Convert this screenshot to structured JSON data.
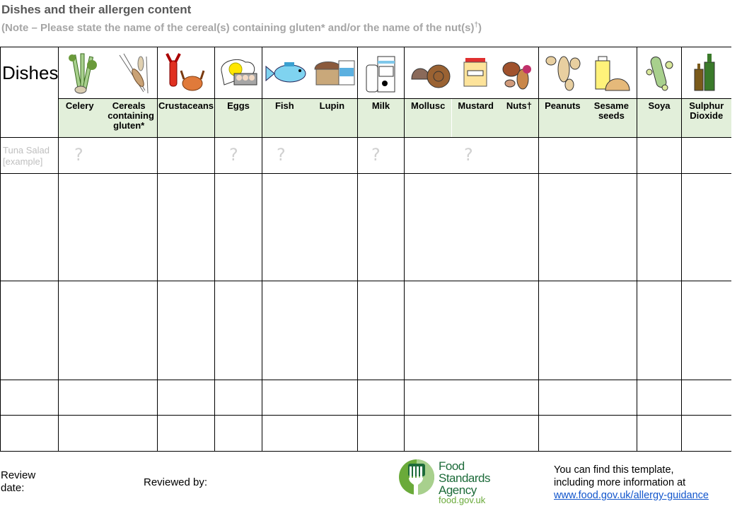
{
  "title": "Dishes and their allergen content",
  "note": {
    "text": "(Note – Please state the name of the cereal(s) containing gluten* and/or the name of the nut(s)",
    "sup": "†",
    "close": ")"
  },
  "table": {
    "dishes_label": "Dishes",
    "columns": [
      {
        "labels": [
          "Celery",
          "Cereals containing gluten*"
        ]
      },
      {
        "labels": [
          "Crustaceans"
        ]
      },
      {
        "labels": [
          "Eggs"
        ]
      },
      {
        "labels": [
          "Fish",
          "Lupin"
        ]
      },
      {
        "labels": [
          "Milk"
        ]
      },
      {
        "labels": [
          "Mollusc",
          "Mustard",
          "Nuts†"
        ]
      },
      {
        "labels": [
          "Peanuts",
          "Sesame seeds"
        ]
      },
      {
        "labels": [
          "Soya"
        ]
      },
      {
        "labels": [
          "Sulphur Dioxide"
        ]
      }
    ],
    "example": {
      "dish": "Tuna Salad [example]",
      "mark": "?",
      "marked": [
        "Celery",
        "Eggs",
        "Fish",
        "Milk",
        "Mustard"
      ]
    }
  },
  "footer": {
    "review_date": "Review date:",
    "reviewed_by": "Reviewed by:",
    "logo": {
      "name": "Food Standards Agency",
      "url": "food.gov.uk",
      "brand_color": "#1d6b3a"
    },
    "info_line1": "You can find this template,",
    "info_line2": "including more information at",
    "info_link": "www.food.gov.uk/allergy-guidance"
  },
  "colors": {
    "header_green": "#e2efda",
    "link": "#1155cc"
  }
}
